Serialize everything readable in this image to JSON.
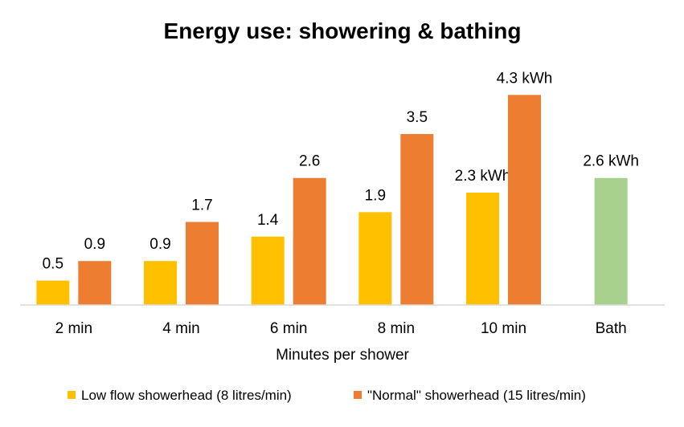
{
  "chart_data": {
    "type": "bar",
    "title": "Energy use: showering & bathing",
    "xlabel": "Minutes per shower",
    "ylabel": "",
    "ylim": [
      0,
      4.6
    ],
    "grid": false,
    "categories": [
      "2 min",
      "4 min",
      "6 min",
      "8 min",
      "10 min",
      "Bath"
    ],
    "series": [
      {
        "name": "Low flow showerhead (8 litres/min)",
        "color": "#FFC000",
        "values": [
          0.5,
          0.9,
          1.4,
          1.9,
          2.3,
          null
        ],
        "labels": [
          "0.5",
          "0.9",
          "1.4",
          "1.9",
          "2.3 kWh",
          null
        ]
      },
      {
        "name": "\"Normal\" showerhead (15 litres/min)",
        "color": "#ED7D31",
        "values": [
          0.9,
          1.7,
          2.6,
          3.5,
          4.3,
          null
        ],
        "labels": [
          "0.9",
          "1.7",
          "2.6",
          "3.5",
          "4.3 kWh",
          null
        ]
      }
    ],
    "bath": {
      "category": "Bath",
      "value": 2.6,
      "label": "2.6 kWh",
      "color": "#A9D18E"
    },
    "legend": {
      "position": "bottom",
      "entries": [
        "Low flow showerhead (8 litres/min)",
        "\"Normal\" showerhead (15 litres/min)"
      ]
    },
    "axis_color": "#D9D9D9"
  }
}
